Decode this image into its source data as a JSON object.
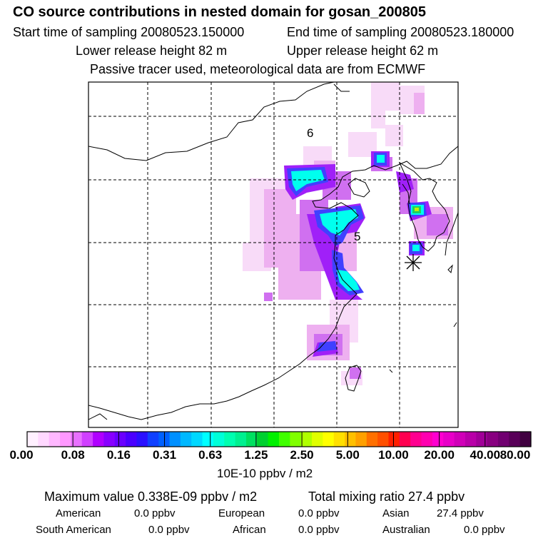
{
  "header": {
    "title": "CO  source contributions in nested domain for gosan_200805",
    "start_label": "Start time of sampling 20080523.150000",
    "end_label": "End time of sampling 20080523.180000",
    "lower_label": "Lower release height   82 m",
    "upper_label": "Upper release height   62 m",
    "note": "Passive tracer used, meteorological data are from ECMWF"
  },
  "map": {
    "labels": [
      {
        "text": "6"
      },
      {
        "text": "5"
      }
    ]
  },
  "colorbar": {
    "colors": [
      "#fff0ff",
      "#ffd8ff",
      "#ffb8ff",
      "#ff98ff",
      "#e870ff",
      "#d040ff",
      "#b000ff",
      "#8800ff",
      "#6a00ff",
      "#4a00ff",
      "#2a10ff",
      "#1040ff",
      "#0060ff",
      "#0090ff",
      "#00b8ff",
      "#00d8ff",
      "#00ffff",
      "#00ffd8",
      "#00ffb0",
      "#00f090",
      "#00e060",
      "#00d030",
      "#00f000",
      "#40ff00",
      "#80ff00",
      "#b0ff00",
      "#e0ff00",
      "#ffff00",
      "#ffe000",
      "#ffc000",
      "#ffa000",
      "#ff7000",
      "#ff5000",
      "#ff2000",
      "#ff0050",
      "#ff0090",
      "#ff00b0",
      "#ff00d0",
      "#e800c8",
      "#d000b8",
      "#b800a8",
      "#a00098",
      "#880080",
      "#700070",
      "#580058",
      "#400040"
    ],
    "ticks": [
      "0.00",
      "0.08",
      "0.16",
      "0.31",
      "0.63",
      "1.25",
      "2.50",
      "5.00",
      "10.00",
      "20.00",
      "40.00",
      "80.00"
    ],
    "unit": "10E-10 ppbv / m2"
  },
  "stats": {
    "max_label": "Maximum value  0.338E-09 ppbv / m2",
    "total_label": "Total mixing ratio       27.4 ppbv",
    "regions": [
      {
        "name": "American",
        "value": "0.0 ppbv"
      },
      {
        "name": "European",
        "value": "0.0 ppbv"
      },
      {
        "name": "Asian",
        "value": "27.4 ppbv"
      },
      {
        "name": "South American",
        "value": "0.0 ppbv"
      },
      {
        "name": "African",
        "value": "0.0 ppbv"
      },
      {
        "name": "Australian",
        "value": "0.0 ppbv"
      }
    ]
  }
}
